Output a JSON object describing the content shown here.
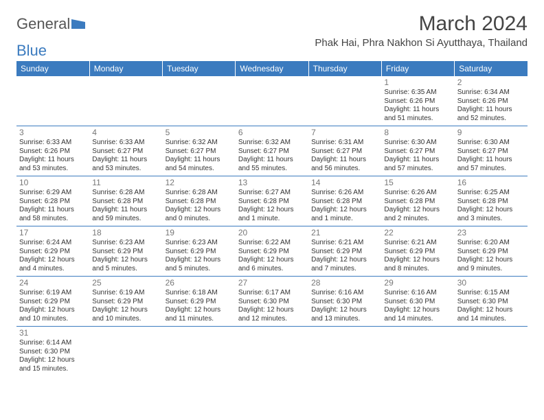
{
  "logo": {
    "part1": "General",
    "part2": "Blue"
  },
  "title": "March 2024",
  "location": "Phak Hai, Phra Nakhon Si Ayutthaya, Thailand",
  "header_bg": "#3b7bbf",
  "header_fg": "#ffffff",
  "border_color": "#3b7bbf",
  "text_color": "#333333",
  "daynum_color": "#777777",
  "weekdays": [
    "Sunday",
    "Monday",
    "Tuesday",
    "Wednesday",
    "Thursday",
    "Friday",
    "Saturday"
  ],
  "weeks": [
    [
      null,
      null,
      null,
      null,
      null,
      {
        "n": "1",
        "sr": "Sunrise: 6:35 AM",
        "ss": "Sunset: 6:26 PM",
        "dl": "Daylight: 11 hours and 51 minutes."
      },
      {
        "n": "2",
        "sr": "Sunrise: 6:34 AM",
        "ss": "Sunset: 6:26 PM",
        "dl": "Daylight: 11 hours and 52 minutes."
      }
    ],
    [
      {
        "n": "3",
        "sr": "Sunrise: 6:33 AM",
        "ss": "Sunset: 6:26 PM",
        "dl": "Daylight: 11 hours and 53 minutes."
      },
      {
        "n": "4",
        "sr": "Sunrise: 6:33 AM",
        "ss": "Sunset: 6:27 PM",
        "dl": "Daylight: 11 hours and 53 minutes."
      },
      {
        "n": "5",
        "sr": "Sunrise: 6:32 AM",
        "ss": "Sunset: 6:27 PM",
        "dl": "Daylight: 11 hours and 54 minutes."
      },
      {
        "n": "6",
        "sr": "Sunrise: 6:32 AM",
        "ss": "Sunset: 6:27 PM",
        "dl": "Daylight: 11 hours and 55 minutes."
      },
      {
        "n": "7",
        "sr": "Sunrise: 6:31 AM",
        "ss": "Sunset: 6:27 PM",
        "dl": "Daylight: 11 hours and 56 minutes."
      },
      {
        "n": "8",
        "sr": "Sunrise: 6:30 AM",
        "ss": "Sunset: 6:27 PM",
        "dl": "Daylight: 11 hours and 57 minutes."
      },
      {
        "n": "9",
        "sr": "Sunrise: 6:30 AM",
        "ss": "Sunset: 6:27 PM",
        "dl": "Daylight: 11 hours and 57 minutes."
      }
    ],
    [
      {
        "n": "10",
        "sr": "Sunrise: 6:29 AM",
        "ss": "Sunset: 6:28 PM",
        "dl": "Daylight: 11 hours and 58 minutes."
      },
      {
        "n": "11",
        "sr": "Sunrise: 6:28 AM",
        "ss": "Sunset: 6:28 PM",
        "dl": "Daylight: 11 hours and 59 minutes."
      },
      {
        "n": "12",
        "sr": "Sunrise: 6:28 AM",
        "ss": "Sunset: 6:28 PM",
        "dl": "Daylight: 12 hours and 0 minutes."
      },
      {
        "n": "13",
        "sr": "Sunrise: 6:27 AM",
        "ss": "Sunset: 6:28 PM",
        "dl": "Daylight: 12 hours and 1 minute."
      },
      {
        "n": "14",
        "sr": "Sunrise: 6:26 AM",
        "ss": "Sunset: 6:28 PM",
        "dl": "Daylight: 12 hours and 1 minute."
      },
      {
        "n": "15",
        "sr": "Sunrise: 6:26 AM",
        "ss": "Sunset: 6:28 PM",
        "dl": "Daylight: 12 hours and 2 minutes."
      },
      {
        "n": "16",
        "sr": "Sunrise: 6:25 AM",
        "ss": "Sunset: 6:28 PM",
        "dl": "Daylight: 12 hours and 3 minutes."
      }
    ],
    [
      {
        "n": "17",
        "sr": "Sunrise: 6:24 AM",
        "ss": "Sunset: 6:29 PM",
        "dl": "Daylight: 12 hours and 4 minutes."
      },
      {
        "n": "18",
        "sr": "Sunrise: 6:23 AM",
        "ss": "Sunset: 6:29 PM",
        "dl": "Daylight: 12 hours and 5 minutes."
      },
      {
        "n": "19",
        "sr": "Sunrise: 6:23 AM",
        "ss": "Sunset: 6:29 PM",
        "dl": "Daylight: 12 hours and 5 minutes."
      },
      {
        "n": "20",
        "sr": "Sunrise: 6:22 AM",
        "ss": "Sunset: 6:29 PM",
        "dl": "Daylight: 12 hours and 6 minutes."
      },
      {
        "n": "21",
        "sr": "Sunrise: 6:21 AM",
        "ss": "Sunset: 6:29 PM",
        "dl": "Daylight: 12 hours and 7 minutes."
      },
      {
        "n": "22",
        "sr": "Sunrise: 6:21 AM",
        "ss": "Sunset: 6:29 PM",
        "dl": "Daylight: 12 hours and 8 minutes."
      },
      {
        "n": "23",
        "sr": "Sunrise: 6:20 AM",
        "ss": "Sunset: 6:29 PM",
        "dl": "Daylight: 12 hours and 9 minutes."
      }
    ],
    [
      {
        "n": "24",
        "sr": "Sunrise: 6:19 AM",
        "ss": "Sunset: 6:29 PM",
        "dl": "Daylight: 12 hours and 10 minutes."
      },
      {
        "n": "25",
        "sr": "Sunrise: 6:19 AM",
        "ss": "Sunset: 6:29 PM",
        "dl": "Daylight: 12 hours and 10 minutes."
      },
      {
        "n": "26",
        "sr": "Sunrise: 6:18 AM",
        "ss": "Sunset: 6:29 PM",
        "dl": "Daylight: 12 hours and 11 minutes."
      },
      {
        "n": "27",
        "sr": "Sunrise: 6:17 AM",
        "ss": "Sunset: 6:30 PM",
        "dl": "Daylight: 12 hours and 12 minutes."
      },
      {
        "n": "28",
        "sr": "Sunrise: 6:16 AM",
        "ss": "Sunset: 6:30 PM",
        "dl": "Daylight: 12 hours and 13 minutes."
      },
      {
        "n": "29",
        "sr": "Sunrise: 6:16 AM",
        "ss": "Sunset: 6:30 PM",
        "dl": "Daylight: 12 hours and 14 minutes."
      },
      {
        "n": "30",
        "sr": "Sunrise: 6:15 AM",
        "ss": "Sunset: 6:30 PM",
        "dl": "Daylight: 12 hours and 14 minutes."
      }
    ],
    [
      {
        "n": "31",
        "sr": "Sunrise: 6:14 AM",
        "ss": "Sunset: 6:30 PM",
        "dl": "Daylight: 12 hours and 15 minutes."
      },
      null,
      null,
      null,
      null,
      null,
      null
    ]
  ]
}
